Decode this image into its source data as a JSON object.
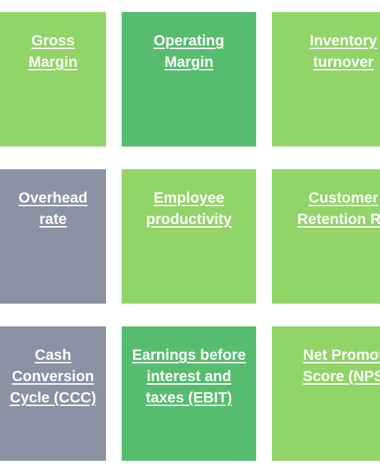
{
  "colors": {
    "light_green": "#91d468",
    "medium_green": "#57bd6e",
    "slate_gray": "#8a93a3"
  },
  "tiles": [
    {
      "label": "Gross\nMargin",
      "color": "#91d468"
    },
    {
      "label": "Operating\nMargin",
      "color": "#57bd6e"
    },
    {
      "label": "Inventory\nturnover",
      "color": "#91d468"
    },
    {
      "label": "Overhead\nrate",
      "color": "#8a93a3"
    },
    {
      "label": "Employee\nproductivity",
      "color": "#91d468"
    },
    {
      "label": "Customer\nRetention Ra",
      "color": "#91d468"
    },
    {
      "label": "Cash\nConversion\nCycle (CCC)",
      "color": "#8a93a3"
    },
    {
      "label": "Earnings before\ninterest and\ntaxes (EBIT)",
      "color": "#57bd6e"
    },
    {
      "label": "Net Promot\nScore (NPS",
      "color": "#91d468"
    }
  ]
}
